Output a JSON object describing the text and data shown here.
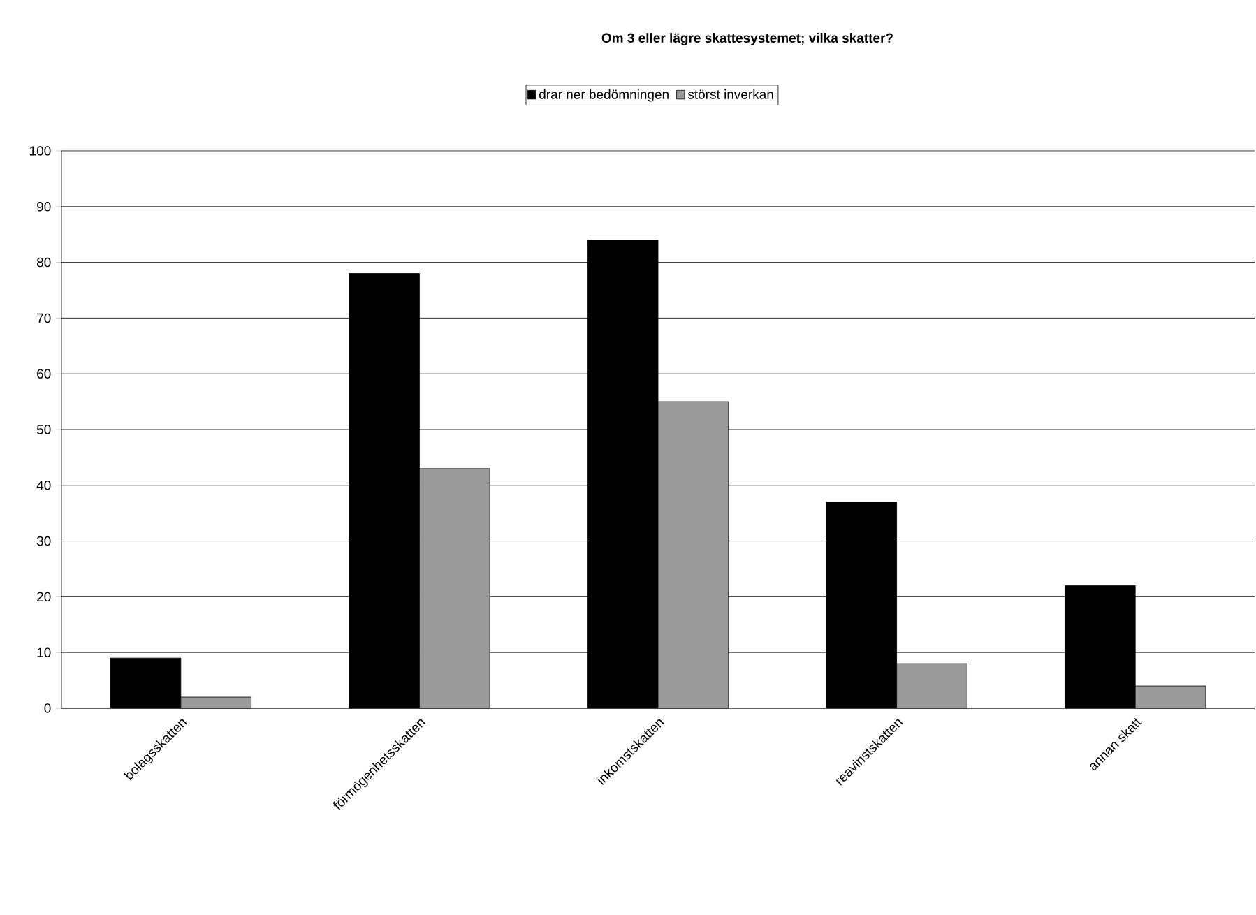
{
  "chart_data": {
    "type": "bar",
    "title": "Om 3 eller lägre skattesystemet; vilka skatter?",
    "categories": [
      "bolagsskatten",
      "förmögenhetsskatten",
      "inkomstskatten",
      "reavinstskatten",
      "annan skatt"
    ],
    "series": [
      {
        "name": "drar ner bedömningen",
        "color": "#000000",
        "values": [
          9,
          78,
          84,
          37,
          22
        ]
      },
      {
        "name": "störst inverkan",
        "color": "#9a9a9a",
        "values": [
          2,
          43,
          55,
          8,
          4
        ]
      }
    ],
    "ylim": [
      0,
      100
    ],
    "yticks": [
      0,
      10,
      20,
      30,
      40,
      50,
      60,
      70,
      80,
      90,
      100
    ],
    "grid": "y",
    "legend": "top"
  }
}
